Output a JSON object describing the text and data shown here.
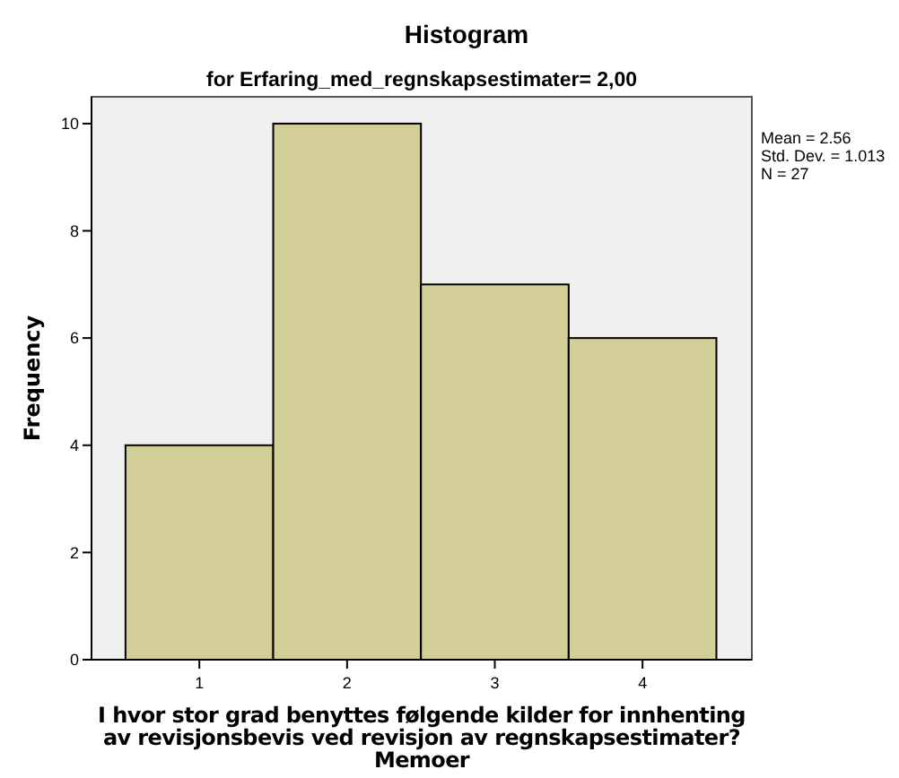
{
  "chart_data": {
    "type": "histogram",
    "title": "Histogram",
    "subtitle": "for Erfaring_med_regnskapsestimater= 2,00",
    "xlabel": "I hvor stor grad benyttes følgende kilder for innhenting\nav revisjonsbevis ved revisjon av regnskapsestimater?\nMemoer",
    "ylabel": "Frequency",
    "bins": [
      0.5,
      1.5,
      2.5,
      3.5,
      4.5
    ],
    "values": [
      4,
      10,
      7,
      6
    ],
    "color": "#d3ce97",
    "xlim": [
      0.27,
      4.74
    ],
    "xticks": [
      1,
      2,
      3,
      4
    ],
    "ylim": [
      0,
      10.5
    ],
    "yticks": [
      0,
      2,
      4,
      6,
      8,
      10
    ],
    "grid": false,
    "annotations": [
      "Mean = 2.56",
      "Std. Dev. = 1.013",
      "N = 27"
    ]
  }
}
